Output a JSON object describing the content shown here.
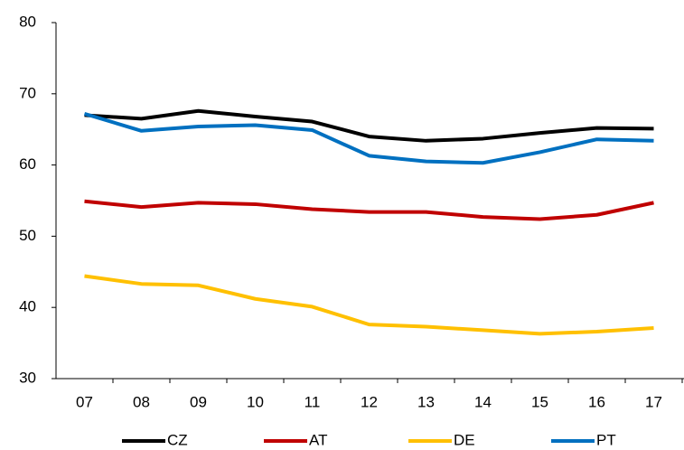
{
  "chart_data": {
    "type": "line",
    "categories": [
      "07",
      "08",
      "09",
      "10",
      "11",
      "12",
      "13",
      "14",
      "15",
      "16",
      "17"
    ],
    "series": [
      {
        "name": "CZ",
        "color": "#000000",
        "values": [
          67.0,
          66.5,
          67.6,
          66.8,
          66.1,
          64.0,
          63.4,
          63.7,
          64.5,
          65.2,
          65.1
        ]
      },
      {
        "name": "AT",
        "color": "#c00000",
        "values": [
          54.9,
          54.1,
          54.7,
          54.5,
          53.8,
          53.4,
          53.4,
          52.7,
          52.4,
          53.0,
          54.7
        ]
      },
      {
        "name": "DE",
        "color": "#ffc000",
        "values": [
          44.4,
          43.3,
          43.1,
          41.2,
          40.1,
          37.6,
          37.3,
          36.8,
          36.3,
          36.6,
          37.1
        ]
      },
      {
        "name": "PT",
        "color": "#0070c0",
        "values": [
          67.2,
          64.8,
          65.4,
          65.6,
          64.9,
          61.3,
          60.5,
          60.3,
          61.8,
          63.6,
          63.4
        ]
      }
    ],
    "ylim": [
      30,
      80
    ],
    "yticks": [
      30,
      40,
      50,
      60,
      70,
      80
    ],
    "legend": "bottom"
  }
}
